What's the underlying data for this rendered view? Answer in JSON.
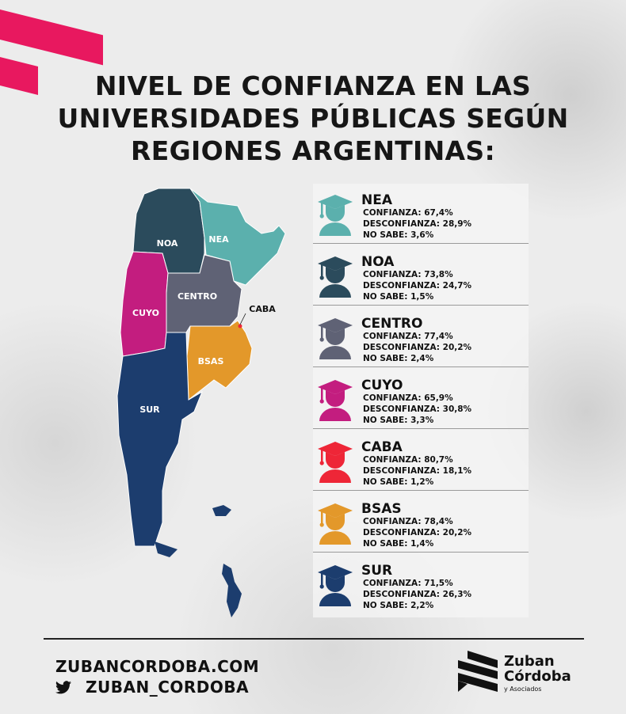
{
  "title_lines": [
    "NIVEL DE CONFIANZA EN LAS",
    "UNIVERSIDADES PÚBLICAS SEGÚN",
    "REGIONES ARGENTINAS:"
  ],
  "map_labels": {
    "noa": "NOA",
    "nea": "NEA",
    "cuyo": "CUYO",
    "centro": "CENTRO",
    "caba": "CABA",
    "bsas": "BSAS",
    "sur": "SUR"
  },
  "regions": [
    {
      "name": "NEA",
      "color": "#5bb0ad",
      "confianza": "CONFIANZA: 67,4%",
      "desconfianza": "DESCONFIANZA: 28,9%",
      "no_sabe": "NO SABE: 3,6%"
    },
    {
      "name": "NOA",
      "color": "#2b4b5c",
      "confianza": "CONFIANZA: 73,8%",
      "desconfianza": "DESCONFIANZA: 24,7%",
      "no_sabe": "NO SABE: 1,5%"
    },
    {
      "name": "CENTRO",
      "color": "#5f6275",
      "confianza": "CONFIANZA: 77,4%",
      "desconfianza": "DESCONFIANZA: 20,2%",
      "no_sabe": "NO SABE: 2,4%"
    },
    {
      "name": "CUYO",
      "color": "#c31d7f",
      "confianza": "CONFIANZA: 65,9%",
      "desconfianza": "DESCONFIANZA: 30,8%",
      "no_sabe": "NO SABE: 3,3%"
    },
    {
      "name": "CABA",
      "color": "#ee2637",
      "confianza": "CONFIANZA: 80,7%",
      "desconfianza": "DESCONFIANZA: 18,1%",
      "no_sabe": "NO SABE: 1,2%"
    },
    {
      "name": "BSAS",
      "color": "#e3982a",
      "confianza": "CONFIANZA: 78,4%",
      "desconfianza": "DESCONFIANZA: 20,2%",
      "no_sabe": "NO SABE: 1,4%"
    },
    {
      "name": "SUR",
      "color": "#1c3d6e",
      "confianza": "CONFIANZA: 71,5%",
      "desconfianza": "DESCONFIANZA: 26,3%",
      "no_sabe": "NO SABE: 2,2%"
    }
  ],
  "footer": {
    "website": "ZUBANCORDOBA.COM",
    "twitter": "ZUBAN_CORDOBA"
  },
  "logo": {
    "line1": "Zuban",
    "line2": "Córdoba",
    "line3": "y Asociados"
  },
  "accent": "#e8185f"
}
